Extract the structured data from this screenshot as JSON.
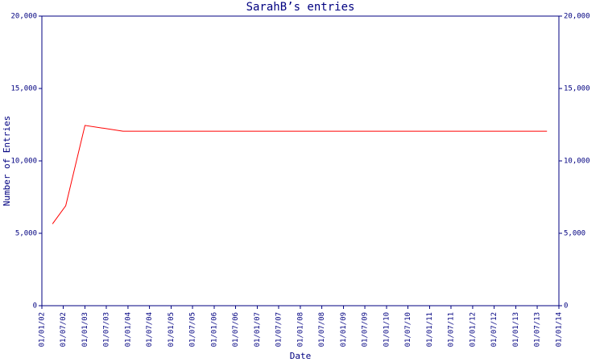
{
  "chart_data": {
    "type": "line",
    "title": "SarahB’s entries",
    "x_label": "Date",
    "y_label": "Number of Entries",
    "x": [
      "01/04/02",
      "22/07/02",
      "01/01/03",
      "20/11/03",
      "22/09/13"
    ],
    "values": [
      5650,
      6900,
      12450,
      12050,
      12050
    ],
    "color": "#ff0000",
    "xlim": [
      "01/01/02",
      "01/01/14"
    ],
    "xticks": [
      "01/01/02",
      "01/07/02",
      "01/01/03",
      "01/07/03",
      "01/01/04",
      "01/07/04",
      "01/01/05",
      "01/07/05",
      "01/01/06",
      "01/07/06",
      "01/01/07",
      "01/07/07",
      "01/01/08",
      "01/07/08",
      "01/01/09",
      "01/07/09",
      "01/01/10",
      "01/07/10",
      "01/01/11",
      "01/07/11",
      "01/01/12",
      "01/07/12",
      "01/01/13",
      "01/07/13",
      "01/01/14"
    ],
    "ylim": [
      0,
      20000
    ],
    "yticks": [
      0,
      {
        "value": 5000,
        "label": "5,000"
      },
      {
        "value": 10000,
        "label": "10,000"
      },
      {
        "value": 15000,
        "label": "15,000"
      },
      {
        "value": 20000,
        "label": "20,000"
      }
    ],
    "grid": false
  }
}
